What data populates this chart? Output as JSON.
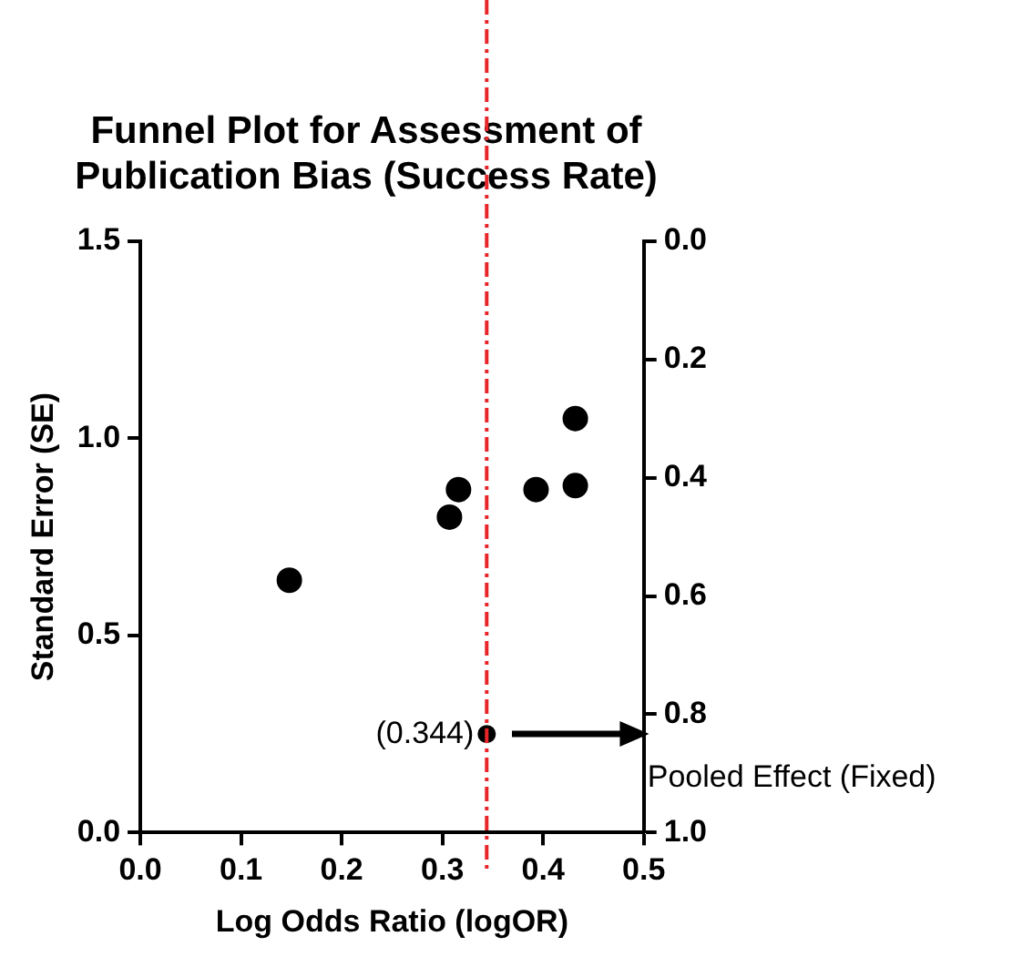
{
  "chart_data": {
    "type": "scatter",
    "title": "Funnel Plot for Assessment of Publication Bias (Success Rate)",
    "xlabel": "Log Odds Ratio (logOR)",
    "ylabel": "Standard Error (SE)",
    "series": [
      {
        "color": "#000000",
        "x": [
          0.148,
          0.307,
          0.316,
          0.393,
          0.432,
          0.432
        ],
        "values": [
          0.64,
          0.8,
          0.87,
          0.87,
          1.05,
          0.88
        ]
      },
      {
        "color": "#000000",
        "x": [
          0.344
        ],
        "values": [
          0.25
        ]
      }
    ],
    "xlim": [
      0,
      0.5
    ],
    "xticks": [
      {
        "value": 0,
        "label": "0.0"
      },
      0.1,
      0.2,
      0.3,
      0.4,
      0.5
    ],
    "ylim": [
      0,
      1.5
    ],
    "yticks": [
      {
        "value": 0,
        "label": "0.0"
      },
      0.5,
      {
        "value": 1,
        "label": "1.0"
      },
      1.5
    ],
    "y2lim": [
      1,
      0
    ],
    "y2ticks": [
      {
        "value": 0,
        "label": "0.0"
      },
      0.2,
      0.4,
      0.6,
      0.8,
      {
        "value": 1,
        "label": "1.0"
      }
    ],
    "ref_lines": [
      {
        "axis": "x",
        "value": 0.344,
        "color": "#e8262a",
        "line_style": "dashed"
      }
    ],
    "annotations": [
      {
        "text": "(0.344)",
        "x": 0.344,
        "y": 0.25
      },
      "Pooled Effect (Fixed)"
    ],
    "marker": "circle",
    "legend": false
  }
}
